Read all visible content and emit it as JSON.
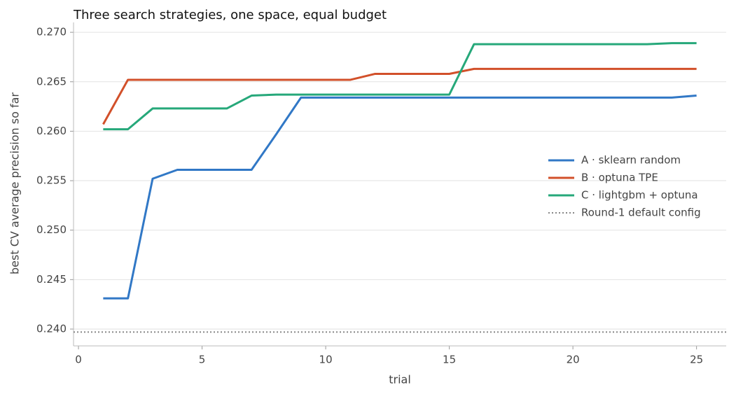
{
  "chart_data": {
    "type": "line",
    "title": "Three search strategies, one space, equal budget",
    "x_label": "trial",
    "y_label": "best CV average precision so far",
    "x": [
      1,
      2,
      3,
      4,
      5,
      6,
      7,
      8,
      9,
      10,
      11,
      12,
      13,
      14,
      15,
      16,
      17,
      18,
      19,
      20,
      21,
      22,
      23,
      24,
      25
    ],
    "series": [
      {
        "name": "A · sklearn random",
        "color": "#3178c6",
        "values": [
          0.2431,
          0.2431,
          0.2552,
          0.2561,
          0.2561,
          0.2561,
          0.2561,
          0.2597,
          0.2634,
          0.2634,
          0.2634,
          0.2634,
          0.2634,
          0.2634,
          0.2634,
          0.2634,
          0.2634,
          0.2634,
          0.2634,
          0.2634,
          0.2634,
          0.2634,
          0.2634,
          0.2634,
          0.2636
        ]
      },
      {
        "name": "B · optuna TPE",
        "color": "#d2502a",
        "values": [
          0.2607,
          0.2652,
          0.2652,
          0.2652,
          0.2652,
          0.2652,
          0.2652,
          0.2652,
          0.2652,
          0.2652,
          0.2652,
          0.2658,
          0.2658,
          0.2658,
          0.2658,
          0.2663,
          0.2663,
          0.2663,
          0.2663,
          0.2663,
          0.2663,
          0.2663,
          0.2663,
          0.2663,
          0.2663
        ]
      },
      {
        "name": "C · lightgbm + optuna",
        "color": "#26a87a",
        "values": [
          0.2602,
          0.2602,
          0.2623,
          0.2623,
          0.2623,
          0.2623,
          0.2636,
          0.2637,
          0.2637,
          0.2637,
          0.2637,
          0.2637,
          0.2637,
          0.2637,
          0.2637,
          0.2688,
          0.2688,
          0.2688,
          0.2688,
          0.2688,
          0.2688,
          0.2688,
          0.2688,
          0.2689,
          0.2689
        ]
      }
    ],
    "reference_lines": [
      {
        "name": "Round-1 default config",
        "value": 0.2397,
        "color": "#888888",
        "style": "dotted"
      }
    ],
    "xlim": [
      -0.2,
      26.2
    ],
    "ylim": [
      0.2383,
      0.271
    ],
    "xticks": [
      0,
      5,
      10,
      15,
      20,
      25
    ],
    "yticks": [
      {
        "value": 0.24,
        "label": "0.240"
      },
      0.245,
      {
        "value": 0.25,
        "label": "0.250"
      },
      0.255,
      {
        "value": 0.26,
        "label": "0.260"
      },
      0.265,
      {
        "value": 0.27,
        "label": "0.270"
      }
    ],
    "grid": "y",
    "legend": "right"
  }
}
